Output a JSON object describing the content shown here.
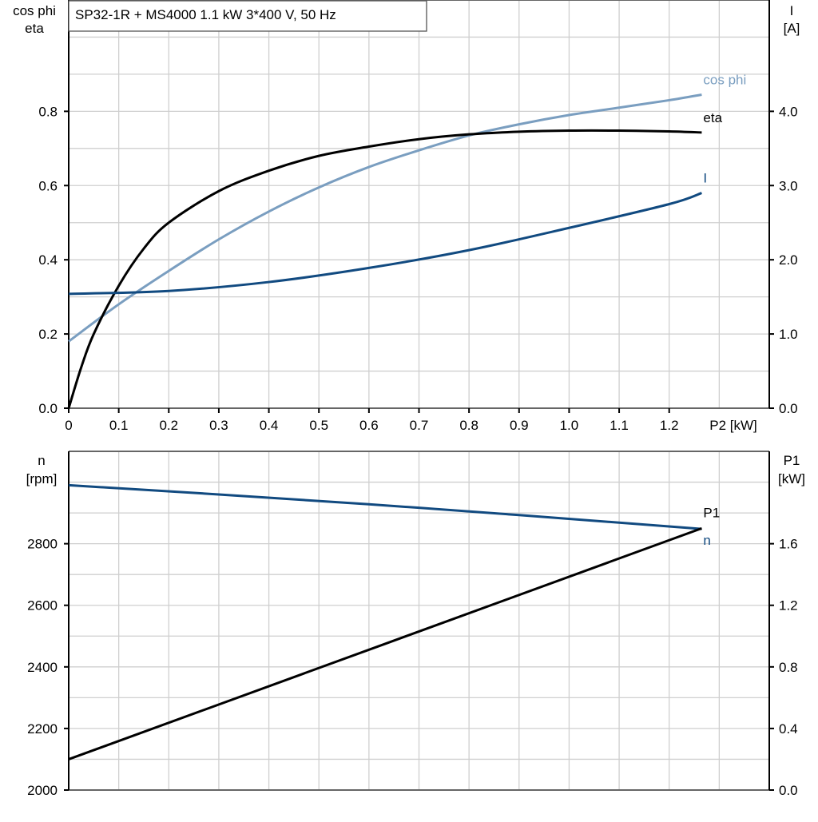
{
  "chart_data": [
    {
      "type": "line",
      "title": "SP32-1R + MS4000   1.1 kW   3*400 V, 50 Hz",
      "xlabel": "P2 [kW]",
      "ylabel_left": [
        "cos phi",
        "eta"
      ],
      "ylabel_right": [
        "I",
        "[A]"
      ],
      "xlim": [
        0,
        1.4
      ],
      "ylim_left": [
        0,
        1.1
      ],
      "ylim_right": [
        0,
        5.5
      ],
      "x_ticks": [
        "0",
        "0.1",
        "0.2",
        "0.3",
        "0.4",
        "0.5",
        "0.6",
        "0.7",
        "0.8",
        "0.9",
        "1.0",
        "1.1",
        "1.2"
      ],
      "y_ticks_left": [
        "0.0",
        "0.2",
        "0.4",
        "0.6",
        "0.8"
      ],
      "y_ticks_right": [
        "0.0",
        "1.0",
        "2.0",
        "3.0",
        "4.0"
      ],
      "grid": true,
      "series": [
        {
          "name": "cos phi",
          "axis": "left",
          "color": "#7a9ec0",
          "x": [
            0,
            0.1,
            0.2,
            0.3,
            0.4,
            0.5,
            0.6,
            0.7,
            0.8,
            0.9,
            1.0,
            1.1,
            1.2,
            1.265
          ],
          "y": [
            0.18,
            0.28,
            0.37,
            0.455,
            0.53,
            0.595,
            0.65,
            0.695,
            0.735,
            0.765,
            0.79,
            0.81,
            0.83,
            0.845
          ]
        },
        {
          "name": "eta",
          "axis": "left",
          "color": "#000000",
          "x": [
            0,
            0.025,
            0.05,
            0.1,
            0.15,
            0.2,
            0.3,
            0.4,
            0.5,
            0.6,
            0.7,
            0.8,
            0.9,
            1.0,
            1.1,
            1.2,
            1.265
          ],
          "y": [
            0,
            0.11,
            0.2,
            0.33,
            0.43,
            0.5,
            0.585,
            0.64,
            0.68,
            0.705,
            0.725,
            0.738,
            0.745,
            0.748,
            0.748,
            0.746,
            0.743
          ]
        },
        {
          "name": "I",
          "axis": "right",
          "color": "#114a80",
          "x": [
            0,
            0.2,
            0.4,
            0.6,
            0.8,
            1.0,
            1.2,
            1.265
          ],
          "y": [
            1.54,
            1.58,
            1.7,
            1.89,
            2.13,
            2.43,
            2.75,
            2.9
          ]
        }
      ]
    },
    {
      "type": "line",
      "xlim": [
        0,
        1.4
      ],
      "ylabel_left": [
        "n",
        "[rpm]"
      ],
      "ylabel_right": [
        "P1",
        "[kW]"
      ],
      "ylim_left": [
        2000,
        3100
      ],
      "ylim_right": [
        0,
        2.2
      ],
      "y_ticks_left": [
        "2000",
        "2200",
        "2400",
        "2600",
        "2800"
      ],
      "y_ticks_right": [
        "0.0",
        "0.4",
        "0.8",
        "1.2",
        "1.6"
      ],
      "grid": true,
      "series": [
        {
          "name": "n",
          "axis": "left",
          "color": "#114a80",
          "x": [
            0,
            0.3,
            0.6,
            0.9,
            1.265
          ],
          "y": [
            2990,
            2960,
            2928,
            2893,
            2848
          ]
        },
        {
          "name": "P1",
          "axis": "right",
          "color": "#000000",
          "x": [
            0,
            1.265
          ],
          "y": [
            0.2,
            1.7
          ]
        }
      ]
    }
  ]
}
